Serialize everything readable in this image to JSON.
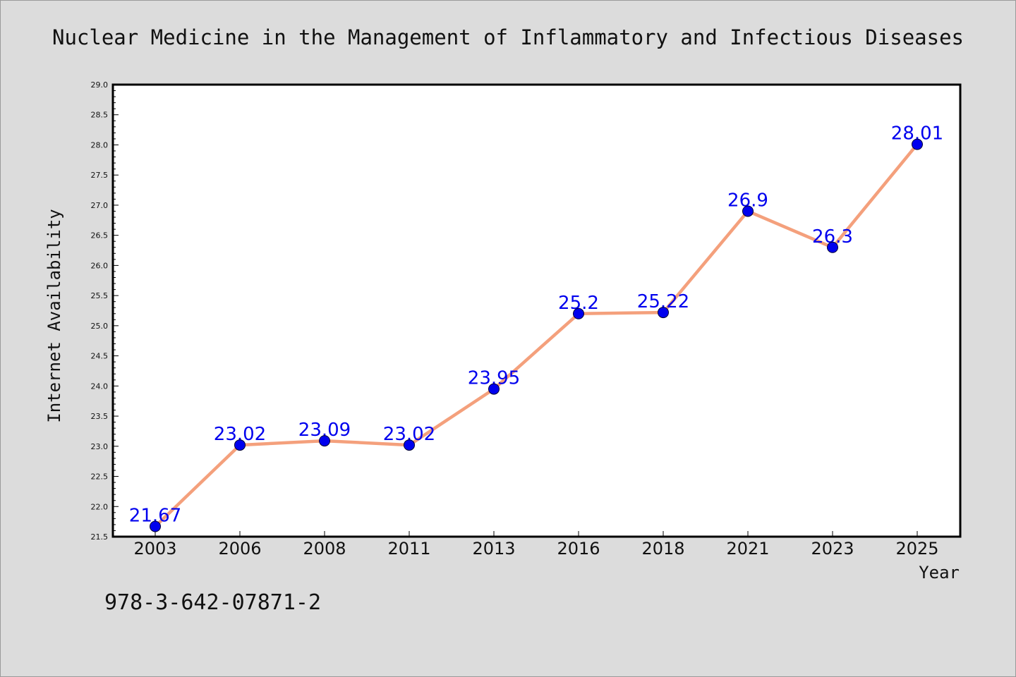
{
  "chart_data": {
    "type": "line",
    "title": "Nuclear Medicine in the Management of Inflammatory and Infectious Diseases",
    "xlabel": "Year",
    "ylabel": "Internet Availability",
    "categories": [
      "2003",
      "2006",
      "2008",
      "2011",
      "2013",
      "2016",
      "2018",
      "2021",
      "2023",
      "2025"
    ],
    "values": [
      21.67,
      23.02,
      23.09,
      23.02,
      23.95,
      25.2,
      25.22,
      26.9,
      26.3,
      28.01
    ],
    "value_labels": [
      "21.67",
      "23.02",
      "23.09",
      "23.02",
      "23.95",
      "25.2",
      "25.22",
      "26.9",
      "26.3",
      "28.01"
    ],
    "ylim": [
      21.5,
      29.0
    ],
    "ytick_step": 0.5,
    "grid": false,
    "legend": false,
    "line_color": "#f4a07c",
    "marker_color": "#0000ee",
    "label_color": "#0000ee"
  },
  "footer_text": "978-3-642-07871-2"
}
